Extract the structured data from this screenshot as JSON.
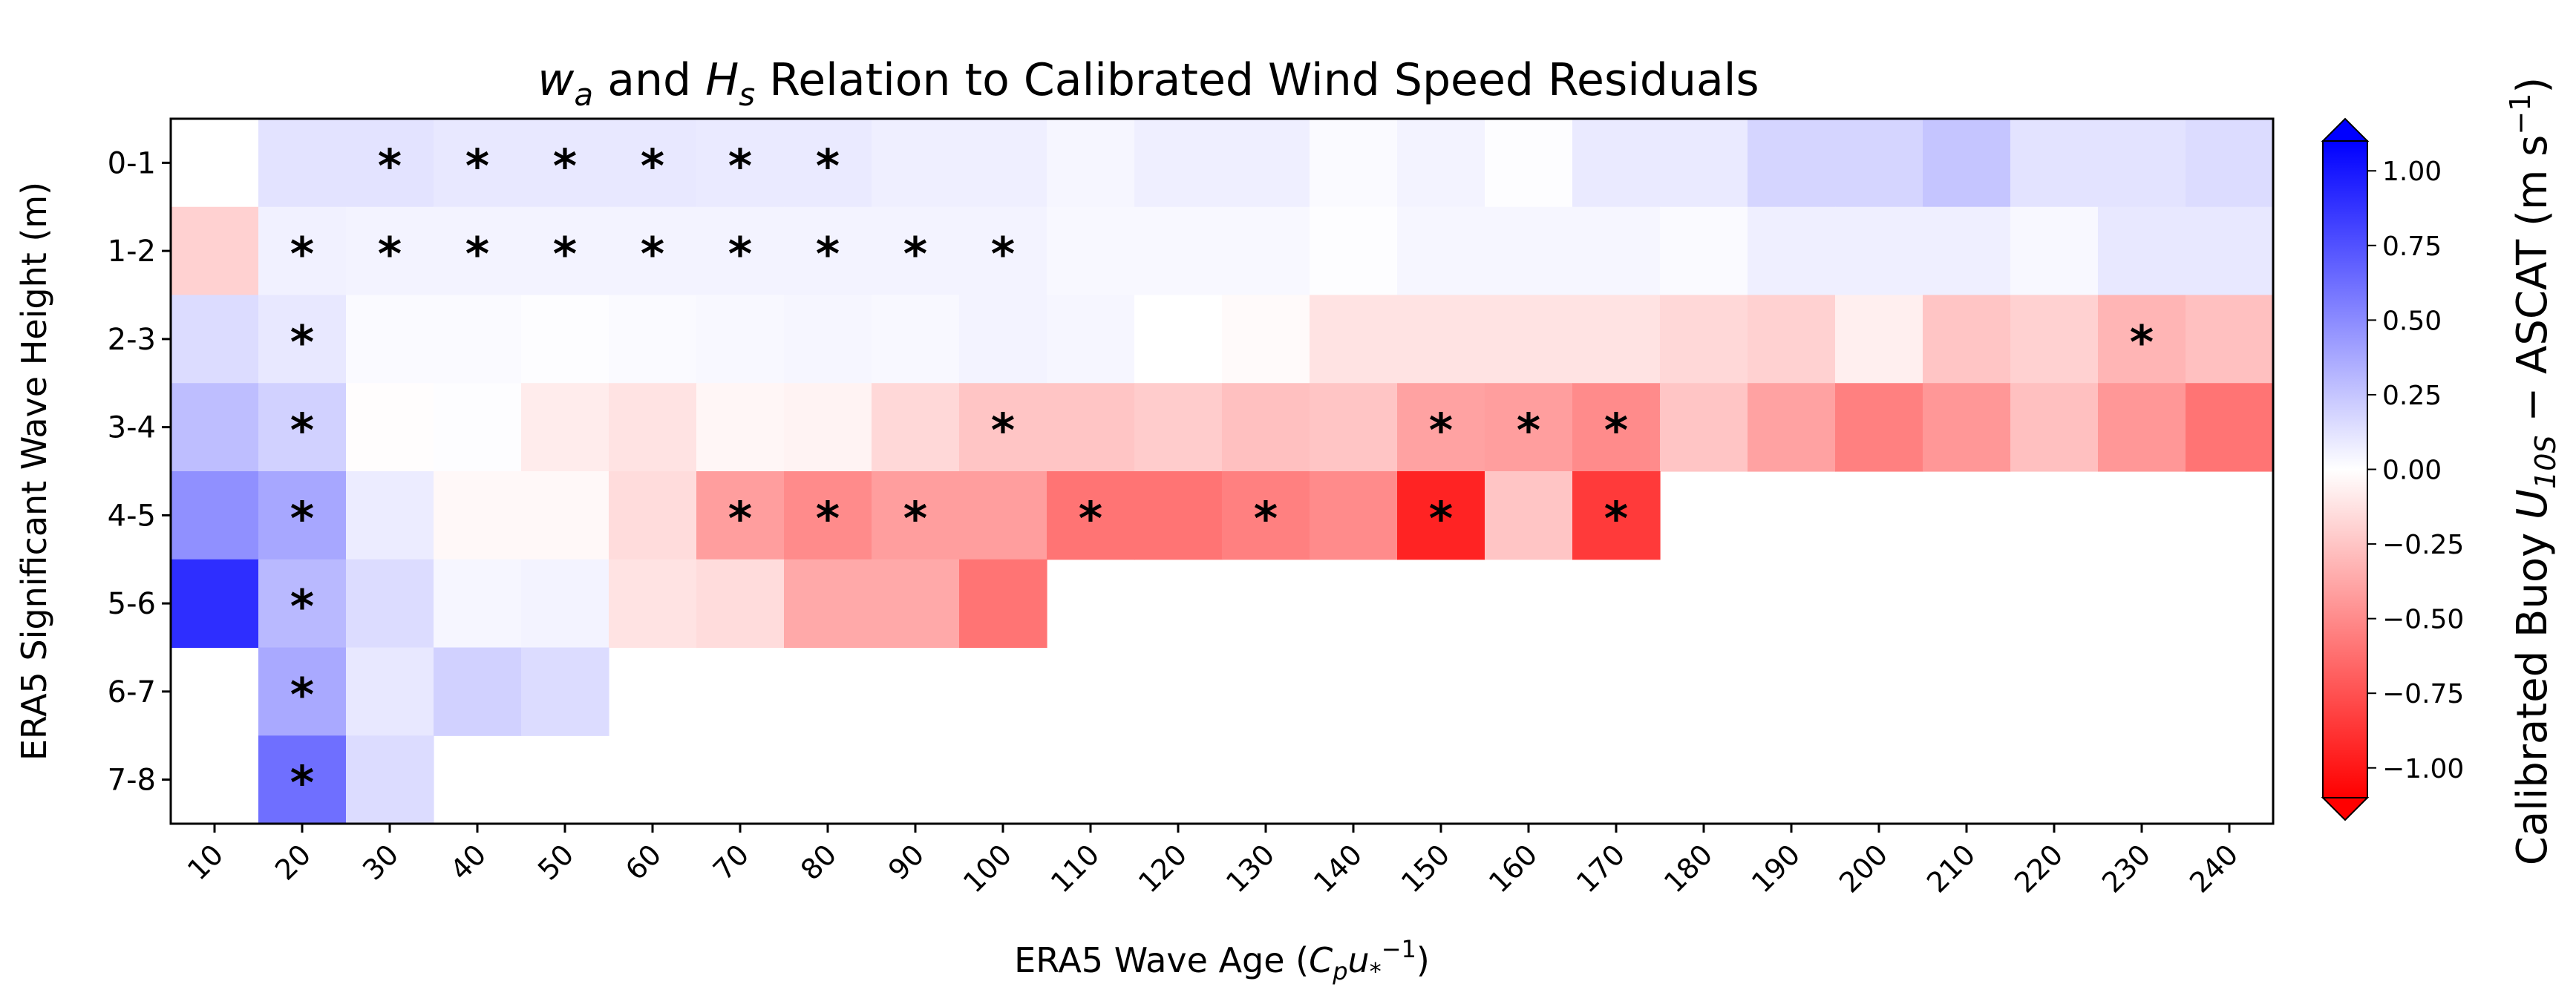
{
  "chart_data": {
    "type": "heatmap",
    "title": "w_a and H_s Relation to Calibrated Wind Speed Residuals",
    "title_parts": [
      "w",
      "a",
      " and ",
      "H",
      "s",
      " Relation to Calibrated Wind Speed Residuals"
    ],
    "xlabel": "ERA5 Wave Age (C_p u_*^-1)",
    "xlabel_parts": [
      "ERA5 Wave Age (",
      "C",
      "p",
      "u",
      "*",
      "−1",
      ")"
    ],
    "ylabel": "ERA5 Significant Wave Height (m)",
    "x_categories": [
      "10",
      "20",
      "30",
      "40",
      "50",
      "60",
      "70",
      "80",
      "90",
      "100",
      "110",
      "120",
      "130",
      "140",
      "150",
      "160",
      "170",
      "180",
      "190",
      "200",
      "210",
      "220",
      "230",
      "240"
    ],
    "y_categories": [
      "0-1",
      "1-2",
      "2-3",
      "3-4",
      "4-5",
      "5-6",
      "6-7",
      "7-8"
    ],
    "values": [
      [
        null,
        0.12,
        0.12,
        0.1,
        0.1,
        0.1,
        0.09,
        0.09,
        0.07,
        0.07,
        0.04,
        0.07,
        0.07,
        0.02,
        0.05,
        0.01,
        0.09,
        0.09,
        0.18,
        0.18,
        0.25,
        0.12,
        0.12,
        0.15
      ],
      [
        -0.2,
        0.06,
        0.05,
        0.05,
        0.05,
        0.05,
        0.05,
        0.05,
        0.05,
        0.05,
        0.03,
        0.03,
        0.03,
        0.01,
        0.04,
        0.04,
        0.04,
        0.02,
        0.07,
        0.07,
        0.07,
        0.03,
        0.1,
        0.1
      ],
      [
        0.15,
        0.1,
        0.02,
        0.02,
        0.01,
        0.02,
        0.03,
        0.04,
        0.03,
        0.05,
        0.04,
        0.0,
        -0.02,
        -0.12,
        -0.12,
        -0.12,
        -0.12,
        -0.17,
        -0.2,
        -0.07,
        -0.25,
        -0.2,
        -0.32,
        -0.27
      ],
      [
        0.28,
        0.2,
        -0.01,
        0.01,
        -0.08,
        -0.12,
        -0.04,
        -0.05,
        -0.17,
        -0.25,
        -0.25,
        -0.22,
        -0.27,
        -0.25,
        -0.4,
        -0.42,
        -0.5,
        -0.25,
        -0.4,
        -0.55,
        -0.45,
        -0.27,
        -0.45,
        -0.6
      ],
      [
        0.48,
        0.38,
        0.08,
        -0.03,
        -0.03,
        -0.15,
        -0.42,
        -0.5,
        -0.42,
        -0.42,
        -0.6,
        -0.6,
        -0.55,
        -0.5,
        -0.95,
        -0.25,
        -0.85,
        null,
        null,
        null,
        null,
        null,
        null,
        null
      ],
      [
        0.9,
        0.3,
        0.15,
        0.04,
        0.05,
        -0.12,
        -0.15,
        -0.37,
        -0.37,
        -0.6,
        null,
        null,
        null,
        null,
        null,
        null,
        null,
        null,
        null,
        null,
        null,
        null,
        null,
        null
      ],
      [
        null,
        0.37,
        0.1,
        0.2,
        0.15,
        null,
        null,
        null,
        null,
        null,
        null,
        null,
        null,
        null,
        null,
        null,
        null,
        null,
        null,
        null,
        null,
        null,
        null,
        null
      ],
      [
        null,
        0.62,
        0.15,
        null,
        null,
        null,
        null,
        null,
        null,
        null,
        null,
        null,
        null,
        null,
        null,
        null,
        null,
        null,
        null,
        null,
        null,
        null,
        null,
        null
      ]
    ],
    "significant": [
      [
        2,
        3,
        4,
        5,
        6,
        7
      ],
      [
        1,
        2,
        3,
        4,
        5,
        6,
        7,
        8,
        9
      ],
      [
        1,
        22
      ],
      [
        1,
        9,
        14,
        15,
        16
      ],
      [
        1,
        6,
        7,
        8,
        10,
        12,
        14,
        16
      ],
      [
        1
      ],
      [
        1
      ],
      [
        1
      ]
    ],
    "significance_marker": "*",
    "vmin": -1.1,
    "vmax": 1.1,
    "colormap": "bwr",
    "colors": {
      "low": "#ff0000",
      "mid": "#ffffff",
      "high": "#0000ff"
    },
    "colorbar": {
      "label": "Calibrated Buoy U_10S − ASCAT (m s^-1)",
      "label_parts": [
        "Calibrated Buoy ",
        "U",
        "10S",
        " − ASCAT (m s",
        "−1",
        ")"
      ],
      "ticks": [
        1.0,
        0.75,
        0.5,
        0.25,
        0.0,
        -0.25,
        -0.5,
        -0.75,
        -1.0
      ],
      "tick_labels": [
        "1.00",
        "0.75",
        "0.50",
        "0.25",
        "0.00",
        "−0.25",
        "−0.50",
        "−0.75",
        "−1.00"
      ],
      "extend": "both"
    }
  }
}
